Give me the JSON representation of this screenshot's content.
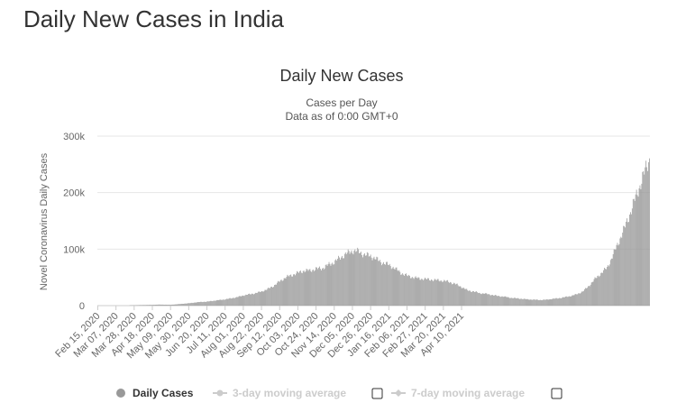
{
  "page": {
    "heading": "Daily New Cases in India"
  },
  "chart_data": {
    "type": "bar",
    "title": "Daily New Cases",
    "subtitle_lines": [
      "Cases per Day",
      "Data as of 0:00 GMT+0"
    ],
    "ylabel": "Novel Coronavirus Daily Cases",
    "xlabel": "",
    "ylim": [
      0,
      300000
    ],
    "y_ticks": [
      {
        "value": 0,
        "label": "0"
      },
      {
        "value": 100000,
        "label": "100k"
      },
      {
        "value": 200000,
        "label": "200k"
      },
      {
        "value": 300000,
        "label": "300k"
      }
    ],
    "x_tick_labels": [
      "Feb 15, 2020",
      "Mar 07, 2020",
      "Mar 28, 2020",
      "Apr 18, 2020",
      "May 09, 2020",
      "May 30, 2020",
      "Jun 20, 2020",
      "Jul 11, 2020",
      "Aug 01, 2020",
      "Aug 22, 2020",
      "Sep 12, 2020",
      "Oct 03, 2020",
      "Oct 24, 2020",
      "Nov 14, 2020",
      "Dec 05, 2020",
      "Dec 26, 2020",
      "Jan 16, 2021",
      "Feb 06, 2021",
      "Feb 27, 2021",
      "Mar 20, 2021",
      "Apr 10, 2021"
    ],
    "tick_interval_days": 21,
    "first_tick_day": 0,
    "start_date": "Feb 15, 2020",
    "bar_color": "#999999",
    "series": [
      {
        "name": "Daily Cases",
        "weekly_values_approx": [
          0,
          0,
          10,
          20,
          80,
          400,
          700,
          1000,
          1200,
          1300,
          1800,
          1700,
          1500,
          2300,
          3300,
          4200,
          5500,
          6500,
          7000,
          8500,
          9800,
          11000,
          13000,
          15000,
          18000,
          20000,
          22000,
          25000,
          29000,
          35000,
          43000,
          50000,
          54000,
          58000,
          62000,
          62000,
          65000,
          66000,
          72000,
          77000,
          85000,
          92000,
          97000,
          96000,
          90000,
          88000,
          82000,
          76000,
          72000,
          66000,
          58000,
          53000,
          50000,
          48000,
          47000,
          46000,
          45000,
          44000,
          42000,
          38000,
          33000,
          27000,
          25000,
          22000,
          21000,
          19000,
          17000,
          16000,
          14000,
          13000,
          12000,
          11000,
          10500,
          10000,
          10500,
          12000,
          13000,
          15000,
          17000,
          20000,
          25000,
          35000,
          47000,
          57000,
          67000,
          90000,
          115000,
          140000,
          170000,
          200000,
          230000,
          260000
        ]
      }
    ]
  },
  "legend": {
    "items": [
      {
        "label": "Daily Cases",
        "active": true,
        "marker_color": "#999999"
      },
      {
        "label": "3-day moving average",
        "active": false
      },
      {
        "label": "7-day moving average",
        "active": false
      }
    ]
  }
}
